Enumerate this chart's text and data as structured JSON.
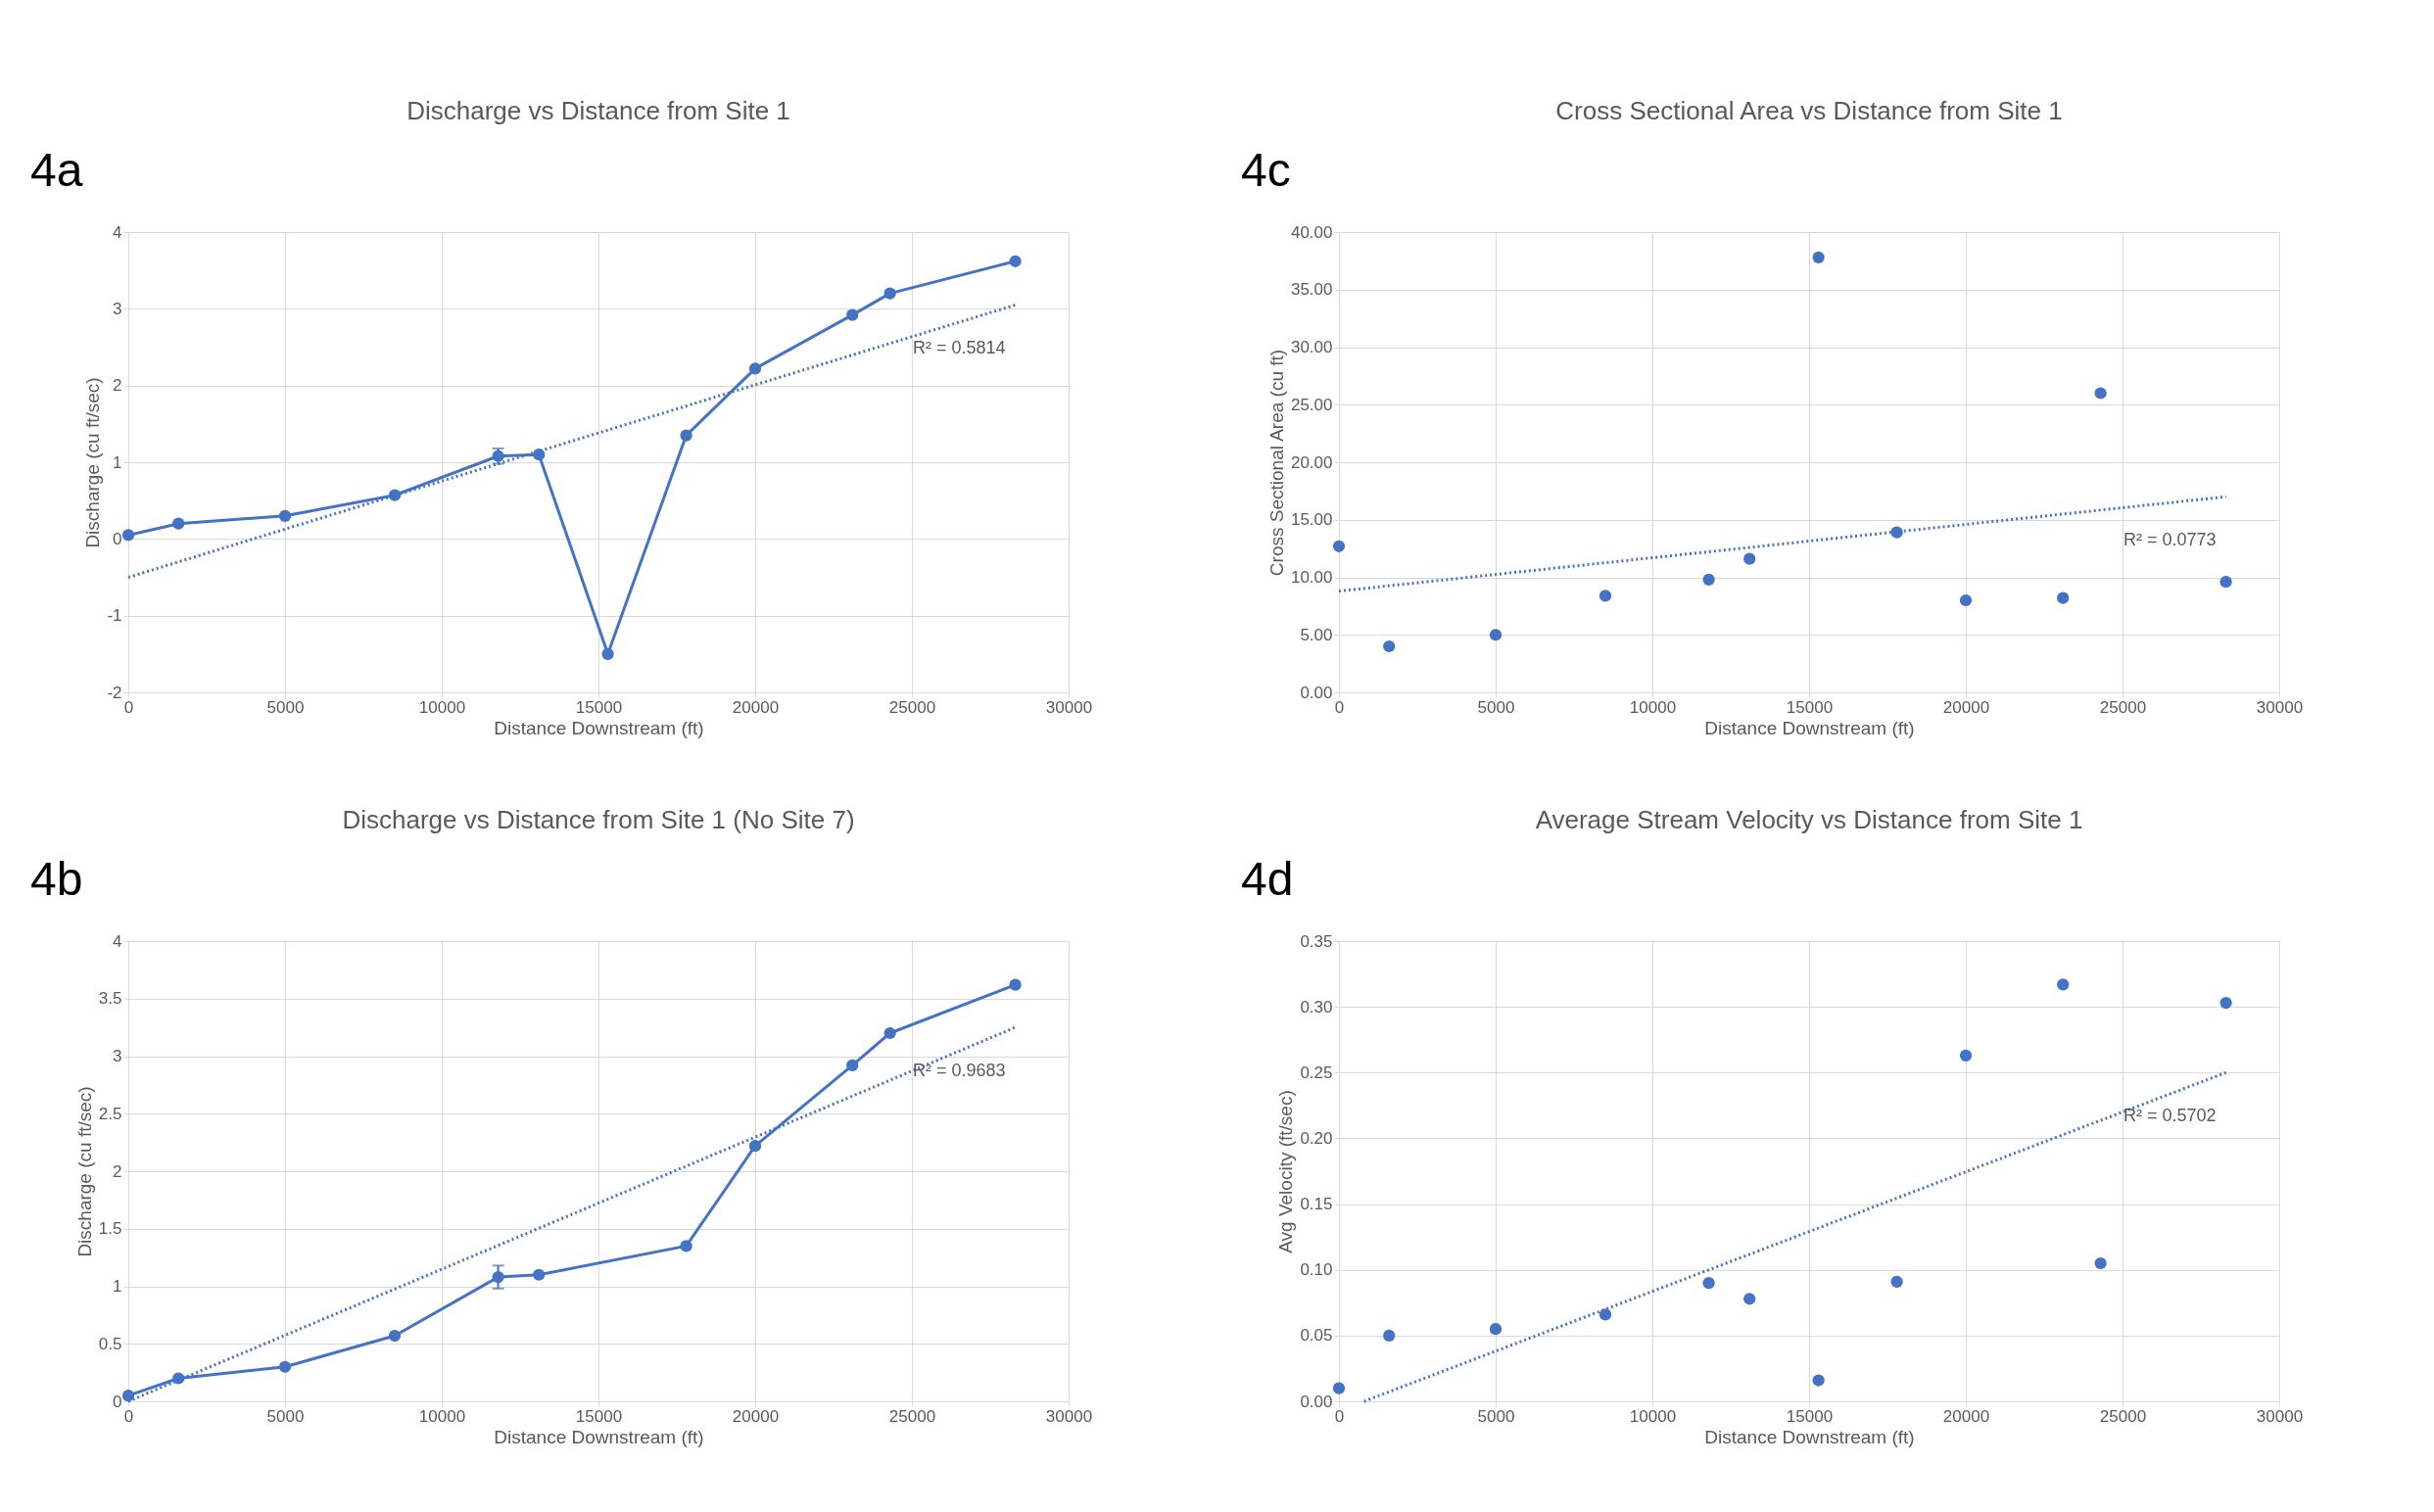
{
  "chart_data": [
    {
      "type": "line",
      "title": "Discharge vs Distance from Site 1",
      "xlabel": "Distance Downstream (ft)",
      "ylabel": "Discharge (cu ft/sec)",
      "x": [
        0,
        1600,
        5000,
        8500,
        11800,
        13100,
        15300,
        17800,
        20000,
        23100,
        24300,
        28300
      ],
      "series": [
        {
          "color": "#4472c4",
          "marker": "circle",
          "line_style": "solid",
          "values": [
            0.05,
            0.2,
            0.3,
            0.57,
            1.08,
            1.1,
            -1.5,
            1.35,
            2.22,
            2.92,
            3.2,
            3.62
          ],
          "errors": [
            null,
            null,
            null,
            null,
            0.1,
            null,
            null,
            null,
            null,
            null,
            null,
            null
          ]
        },
        {
          "type": "line",
          "name": "R² = 0.5814",
          "color": "#4472c4",
          "marker": "none",
          "line_style": "dotted",
          "x": [
            0,
            28300
          ],
          "values": [
            -0.5,
            3.05
          ]
        }
      ],
      "xlim": [
        0,
        30000
      ],
      "xticks": [
        0,
        5000,
        10000,
        15000,
        20000,
        25000,
        30000
      ],
      "ylim": [
        -2,
        4
      ],
      "yticks": [
        -2,
        -1,
        0,
        1,
        2,
        3,
        4
      ],
      "grid": true,
      "annotations": [
        "4a"
      ]
    },
    {
      "type": "scatter",
      "title": "Cross Sectional Area vs Distance from Site 1",
      "xlabel": "Distance Downstream (ft)",
      "ylabel": "Cross Sectional Area (cu ft)",
      "x": [
        0,
        1600,
        5000,
        8500,
        11800,
        13100,
        15300,
        17800,
        20000,
        23100,
        24300,
        28300
      ],
      "series": [
        {
          "color": "#4472c4",
          "marker": "circle",
          "values": [
            12.7,
            4.0,
            5.0,
            8.4,
            9.8,
            11.6,
            37.8,
            13.9,
            8.0,
            8.2,
            26.0,
            9.6
          ]
        },
        {
          "type": "line",
          "name": "R² = 0.0773",
          "color": "#4472c4",
          "marker": "none",
          "line_style": "dotted",
          "x": [
            0,
            28300
          ],
          "values": [
            8.8,
            17.0
          ]
        }
      ],
      "xlim": [
        0,
        30000
      ],
      "xticks": [
        0,
        5000,
        10000,
        15000,
        20000,
        25000,
        30000
      ],
      "ylim": [
        0,
        40
      ],
      "yticks": [
        {
          "value": 0,
          "label": "0.00"
        },
        {
          "value": 5,
          "label": "5.00"
        },
        {
          "value": 10,
          "label": "10.00"
        },
        {
          "value": 15,
          "label": "15.00"
        },
        {
          "value": 20,
          "label": "20.00"
        },
        {
          "value": 25,
          "label": "25.00"
        },
        {
          "value": 30,
          "label": "30.00"
        },
        {
          "value": 35,
          "label": "35.00"
        },
        {
          "value": 40,
          "label": "40.00"
        }
      ],
      "grid": true,
      "annotations": [
        "4c"
      ]
    },
    {
      "type": "line",
      "title": "Discharge vs Distance from Site 1 (No Site 7)",
      "xlabel": "Distance Downstream (ft)",
      "ylabel": "Discharge (cu ft/sec)",
      "x": [
        0,
        1600,
        5000,
        8500,
        11800,
        13100,
        17800,
        20000,
        23100,
        24300,
        28300
      ],
      "series": [
        {
          "color": "#4472c4",
          "marker": "circle",
          "line_style": "solid",
          "values": [
            0.05,
            0.2,
            0.3,
            0.57,
            1.08,
            1.1,
            1.35,
            2.22,
            2.92,
            3.2,
            3.62
          ],
          "errors": [
            null,
            null,
            null,
            null,
            0.1,
            null,
            null,
            null,
            null,
            null,
            null
          ]
        },
        {
          "type": "line",
          "name": "R² = 0.9683",
          "color": "#4472c4",
          "marker": "none",
          "line_style": "dotted",
          "x": [
            0,
            28300
          ],
          "values": [
            0.0,
            3.25
          ]
        }
      ],
      "xlim": [
        0,
        30000
      ],
      "xticks": [
        0,
        5000,
        10000,
        15000,
        20000,
        25000,
        30000
      ],
      "ylim": [
        0,
        4
      ],
      "yticks": [
        0,
        0.5,
        1,
        1.5,
        2,
        2.5,
        3,
        3.5,
        4
      ],
      "grid": true,
      "annotations": [
        "4b"
      ]
    },
    {
      "type": "scatter",
      "title": "Average Stream Velocity vs Distance from Site 1",
      "xlabel": "Distance Downstream (ft)",
      "ylabel": "Avg Velocity (ft/sec)",
      "x": [
        0,
        1600,
        5000,
        8500,
        11800,
        13100,
        15300,
        17800,
        20000,
        23100,
        24300,
        28300
      ],
      "series": [
        {
          "color": "#4472c4",
          "marker": "circle",
          "values": [
            0.01,
            0.05,
            0.055,
            0.066,
            0.09,
            0.078,
            0.016,
            0.091,
            0.263,
            0.317,
            0.105,
            0.303
          ]
        },
        {
          "type": "line",
          "name": "R² = 0.5702",
          "color": "#4472c4",
          "marker": "none",
          "line_style": "dotted",
          "x": [
            800,
            28300
          ],
          "values": [
            0.0,
            0.25
          ]
        }
      ],
      "xlim": [
        0,
        30000
      ],
      "xticks": [
        0,
        5000,
        10000,
        15000,
        20000,
        25000,
        30000
      ],
      "ylim": [
        0,
        0.35
      ],
      "yticks": [
        {
          "value": 0,
          "label": "0.00"
        },
        {
          "value": 0.05,
          "label": "0.05"
        },
        {
          "value": 0.1,
          "label": "0.10"
        },
        {
          "value": 0.15,
          "label": "0.15"
        },
        {
          "value": 0.2,
          "label": "0.20"
        },
        {
          "value": 0.25,
          "label": "0.25"
        },
        {
          "value": 0.3,
          "label": "0.30"
        },
        {
          "value": 0.35,
          "label": "0.35"
        }
      ],
      "grid": true,
      "annotations": [
        "4d"
      ]
    }
  ]
}
